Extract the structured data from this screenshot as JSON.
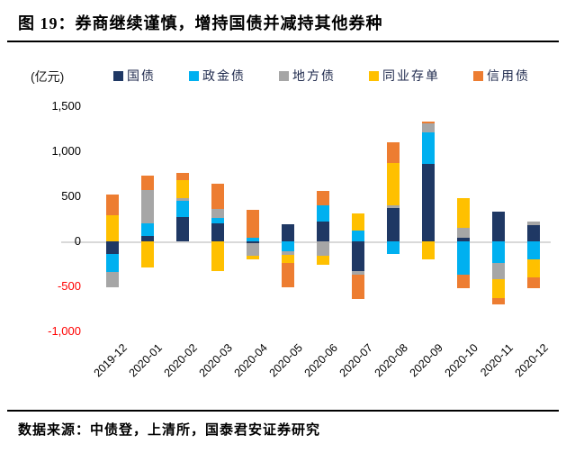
{
  "title": "图 19：券商继续谨慎，增持国债并减持其他券种",
  "footer": {
    "source": "数据来源：中债登，上清所，国泰君安证券研究"
  },
  "chart_data": {
    "type": "bar",
    "stacked": true,
    "unit_label": "(亿元)",
    "title": "券商继续谨慎，增持国债并减持其他券种",
    "xlabel": "",
    "ylabel": "(亿元)",
    "ylim": [
      -1000,
      1500
    ],
    "grid": "zero-line-only",
    "legend_position": "top",
    "axis_text_color": "#000000",
    "negative_tick_color": "#ff0000",
    "zero_line_color": "#d9d9d9",
    "categories": [
      "2019-12",
      "2020-01",
      "2020-02",
      "2020-03",
      "2020-04",
      "2020-05",
      "2020-06",
      "2020-07",
      "2020-08",
      "2020-09",
      "2020-10",
      "2020-11",
      "2020-12"
    ],
    "yticks": [
      {
        "label": "1,500",
        "value": 1500
      },
      {
        "label": "1,000",
        "value": 1000
      },
      {
        "label": "500",
        "value": 500
      },
      {
        "label": "0",
        "value": 0
      },
      {
        "label": "-500",
        "value": -500
      },
      {
        "label": "-1,000",
        "value": -1000
      }
    ],
    "series": [
      {
        "name": "国债",
        "color": "#1f3864",
        "values": [
          -140,
          60,
          270,
          200,
          -20,
          190,
          220,
          -330,
          370,
          860,
          40,
          330,
          180
        ]
      },
      {
        "name": "政金债",
        "color": "#00b0f0",
        "values": [
          -200,
          140,
          180,
          60,
          40,
          -110,
          180,
          120,
          -140,
          350,
          -370,
          -240,
          -200
        ]
      },
      {
        "name": "地方债",
        "color": "#a6a6a6",
        "values": [
          -170,
          370,
          30,
          100,
          -140,
          -40,
          -160,
          -40,
          30,
          100,
          110,
          -180,
          40
        ]
      },
      {
        "name": "同业存单",
        "color": "#ffc000",
        "values": [
          290,
          -290,
          200,
          -330,
          -40,
          -90,
          -100,
          190,
          470,
          -200,
          330,
          -210,
          -200
        ]
      },
      {
        "name": "信用债",
        "color": "#ed7d31",
        "values": [
          230,
          160,
          80,
          280,
          310,
          -270,
          160,
          -270,
          230,
          20,
          -150,
          -70,
          -120
        ]
      }
    ]
  }
}
